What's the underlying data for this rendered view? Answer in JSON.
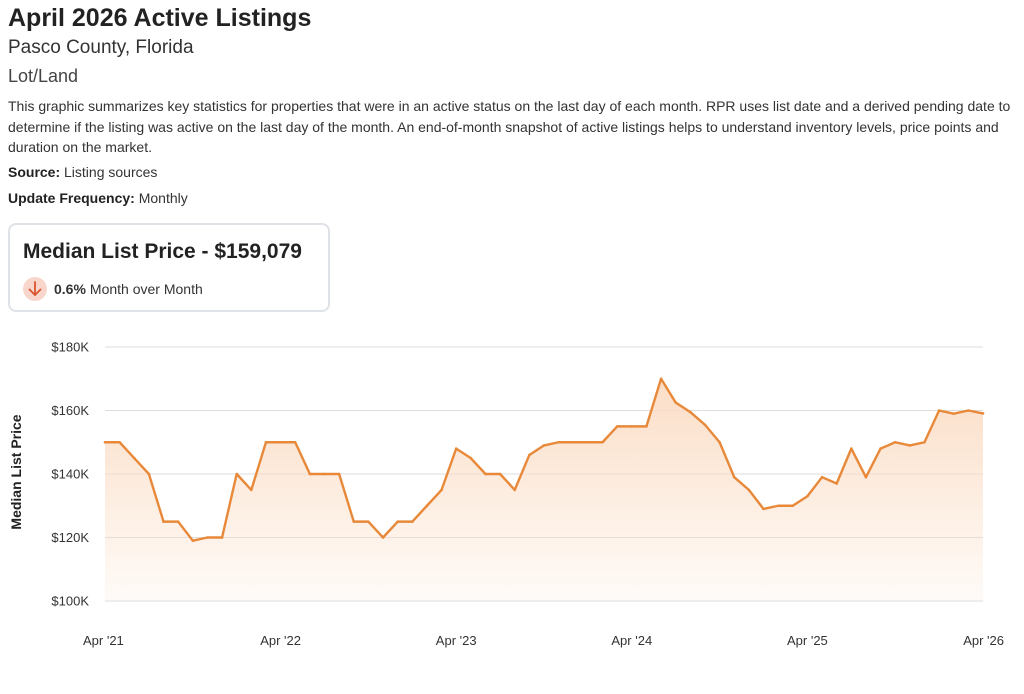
{
  "header": {
    "title": "April 2026 Active Listings",
    "subtitle": "Pasco County, Florida",
    "category": "Lot/Land",
    "description": "This graphic summarizes key statistics for properties that were in an active status on the last day of each month. RPR uses list date and a derived pending date to determine if the listing was active on the last day of the month. An end-of-month snapshot of active listings helps to understand inventory levels, price points and duration on the market.",
    "source_label": "Source:",
    "source_value": "Listing sources",
    "frequency_label": "Update Frequency:",
    "frequency_value": "Monthly"
  },
  "stat": {
    "title": "Median List Price - $159,079",
    "change_pct": "0.6%",
    "change_text": "Month over Month",
    "direction": "down",
    "icon": "arrow-down-icon"
  },
  "colors": {
    "line": "#e8893a",
    "fill_top": "#fbdcc4",
    "badge_bg": "#f9d6cc",
    "badge_arrow": "#d9532f",
    "grid": "#dddddd"
  },
  "chart_data": {
    "type": "area",
    "title": "",
    "xlabel": "",
    "ylabel": "Median List Price",
    "ylim": [
      100000,
      180000
    ],
    "y_ticks": [
      100000,
      120000,
      140000,
      160000,
      180000
    ],
    "y_tick_labels": [
      "$100K",
      "$120K",
      "$140K",
      "$160K",
      "$180K"
    ],
    "x_tick_labels": [
      "Apr '21",
      "Apr '22",
      "Apr '23",
      "Apr '24",
      "Apr '25",
      "Apr '26"
    ],
    "grid": true,
    "series": [
      {
        "x": [
          "2021-04",
          "2021-05",
          "2021-06",
          "2021-07",
          "2021-08",
          "2021-09",
          "2021-10",
          "2021-11",
          "2021-12",
          "2022-01",
          "2022-02",
          "2022-03",
          "2022-04",
          "2022-05",
          "2022-06",
          "2022-07",
          "2022-08",
          "2022-09",
          "2022-10",
          "2022-11",
          "2022-12",
          "2023-01",
          "2023-02",
          "2023-03",
          "2023-04",
          "2023-05",
          "2023-06",
          "2023-07",
          "2023-08",
          "2023-09",
          "2023-10",
          "2023-11",
          "2023-12",
          "2024-01",
          "2024-02",
          "2024-03",
          "2024-04",
          "2024-05",
          "2024-06",
          "2024-07",
          "2024-08",
          "2024-09",
          "2024-10",
          "2024-11",
          "2024-12",
          "2025-01",
          "2025-02",
          "2025-03",
          "2025-04",
          "2025-05",
          "2025-06",
          "2025-07",
          "2025-08",
          "2025-09",
          "2025-10",
          "2025-11",
          "2025-12",
          "2026-01",
          "2026-02",
          "2026-03",
          "2026-04"
        ],
        "values": [
          150000,
          150000,
          145000,
          140000,
          125000,
          125000,
          119000,
          120000,
          120000,
          140000,
          135000,
          150000,
          150000,
          150000,
          140000,
          140000,
          140000,
          125000,
          125000,
          120000,
          125000,
          125000,
          130000,
          135000,
          148000,
          145000,
          140000,
          140000,
          135000,
          146000,
          149000,
          150000,
          150000,
          150000,
          150000,
          155000,
          155000,
          155000,
          170000,
          162500,
          159500,
          155500,
          150000,
          139000,
          135000,
          129000,
          130000,
          130000,
          133000,
          139000,
          137000,
          148000,
          139000,
          148000,
          150000,
          149000,
          150000,
          160000,
          159000,
          160000,
          159079
        ]
      }
    ]
  }
}
